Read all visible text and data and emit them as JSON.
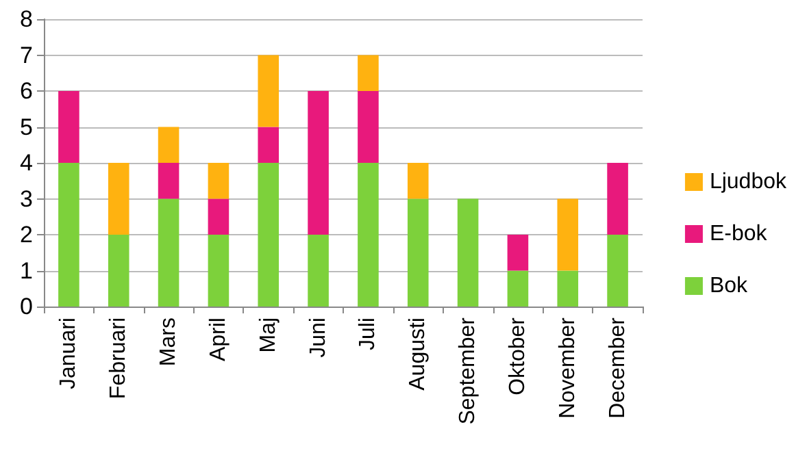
{
  "chart_data": {
    "type": "bar",
    "stacked": true,
    "categories": [
      "Januari",
      "Februari",
      "Mars",
      "April",
      "Maj",
      "Juni",
      "Juli",
      "Augusti",
      "September",
      "Oktober",
      "November",
      "December"
    ],
    "series": [
      {
        "name": "Bok",
        "color": "#7dd13b",
        "values": [
          4,
          2,
          3,
          2,
          4,
          2,
          4,
          3,
          3,
          1,
          1,
          2
        ]
      },
      {
        "name": "E-bok",
        "color": "#e8197c",
        "values": [
          2,
          0,
          1,
          1,
          1,
          4,
          2,
          0,
          0,
          1,
          0,
          2
        ]
      },
      {
        "name": "Ljudbok",
        "color": "#ffb210",
        "values": [
          0,
          2,
          1,
          1,
          2,
          0,
          1,
          1,
          0,
          0,
          2,
          0
        ]
      }
    ],
    "ylim": [
      0,
      8
    ],
    "yticks": [
      0,
      1,
      2,
      3,
      4,
      5,
      6,
      7,
      8
    ],
    "grid": "y",
    "legend": "right"
  }
}
